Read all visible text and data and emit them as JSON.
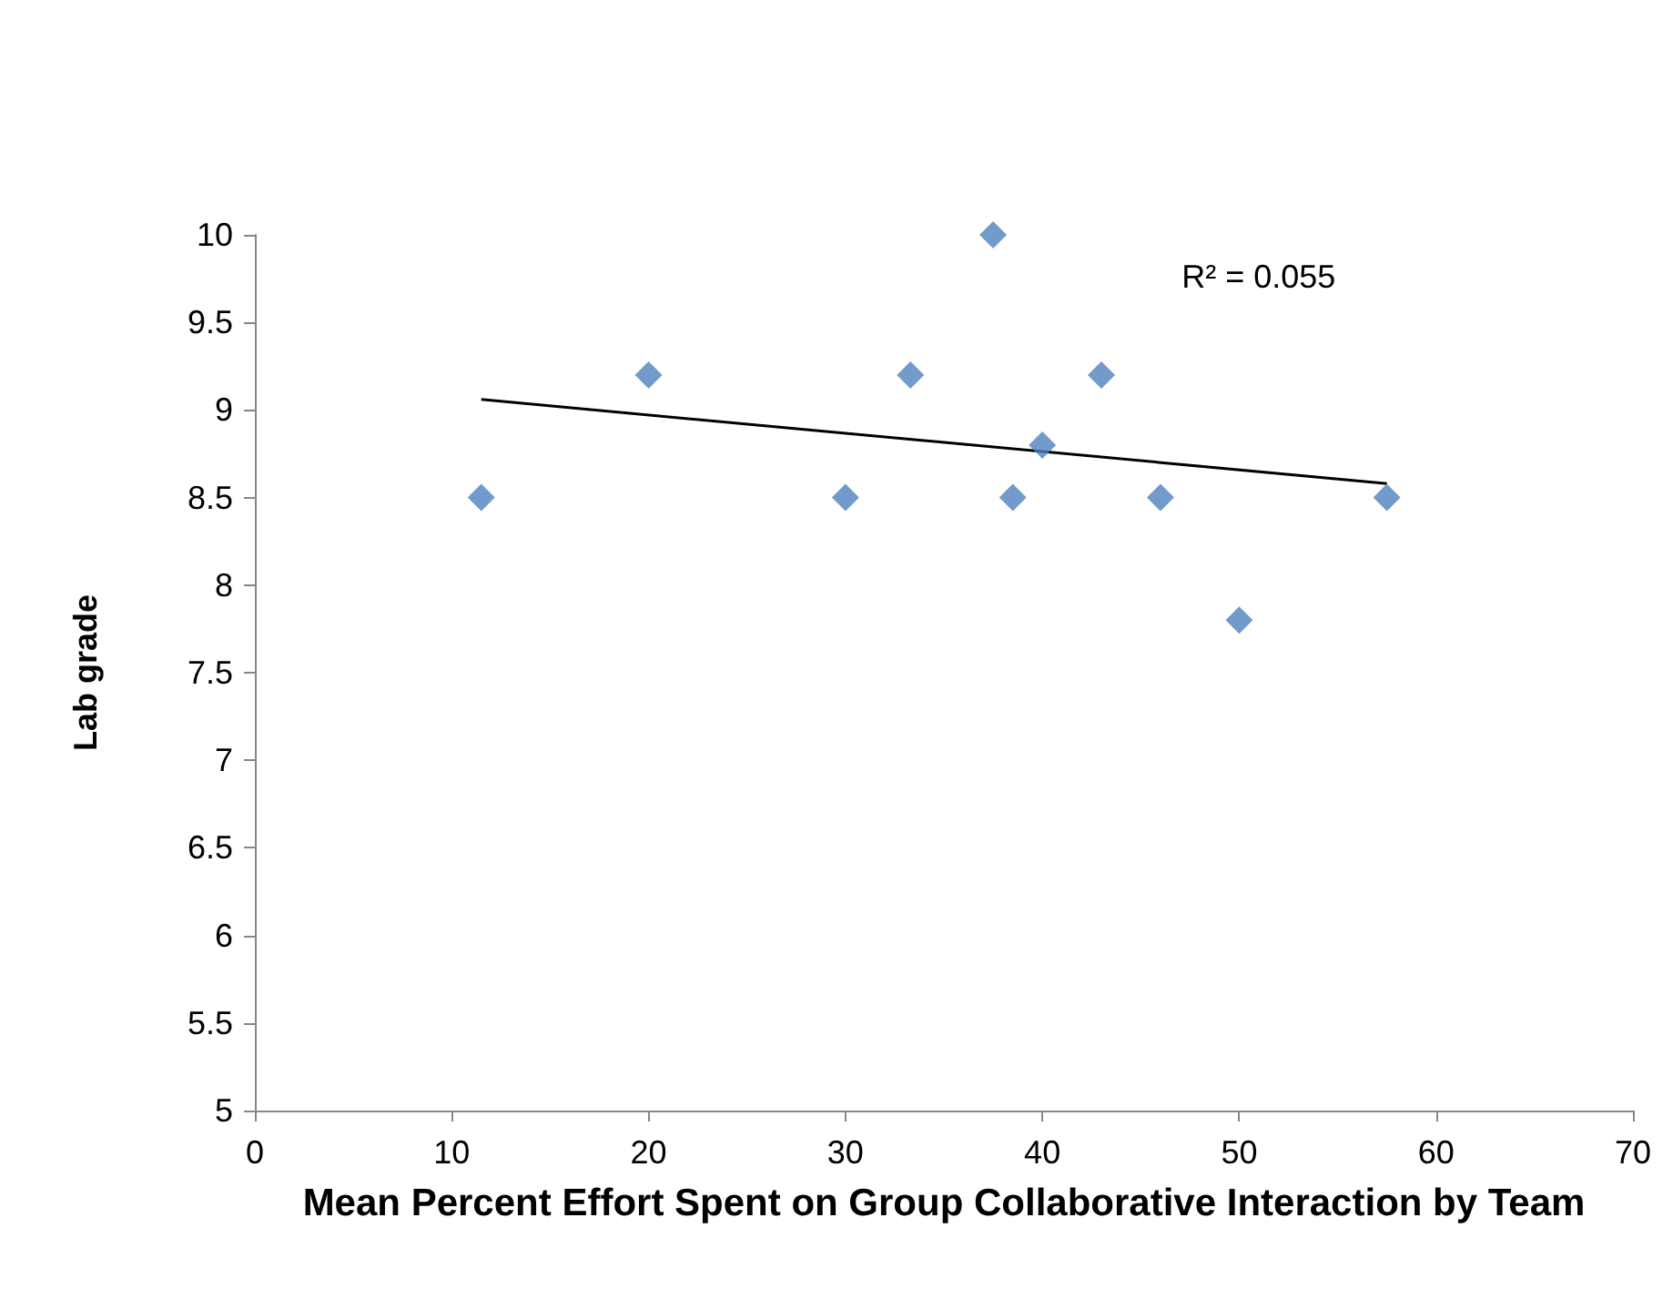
{
  "chart_data": {
    "type": "scatter",
    "xlabel": "Mean Percent Effort Spent on Group Collaborative Interaction by Team",
    "ylabel": "Lab grade",
    "xlim": [
      0,
      70
    ],
    "xticks": [
      0,
      10,
      20,
      30,
      40,
      50,
      60,
      70
    ],
    "ylim": [
      5,
      10
    ],
    "yticks": [
      5,
      5.5,
      6,
      6.5,
      7,
      7.5,
      8,
      8.5,
      9,
      9.5,
      10
    ],
    "series": [
      {
        "color": "#4f81bd",
        "marker": "diamond",
        "x": [
          11.5,
          20,
          30,
          33.3,
          37.5,
          38.5,
          40,
          43,
          46,
          50,
          57.5
        ],
        "values": [
          8.5,
          9.2,
          8.5,
          9.2,
          10,
          8.5,
          8.8,
          9.2,
          8.5,
          7.8,
          8.5
        ]
      },
      {
        "type": "line",
        "color": "#000000",
        "marker": "none",
        "line_style": "solid",
        "x": [
          11.5,
          57.5
        ],
        "values": [
          9.06,
          8.58
        ]
      }
    ],
    "annotations": [
      "R² = 0.055"
    ],
    "grid": false
  }
}
